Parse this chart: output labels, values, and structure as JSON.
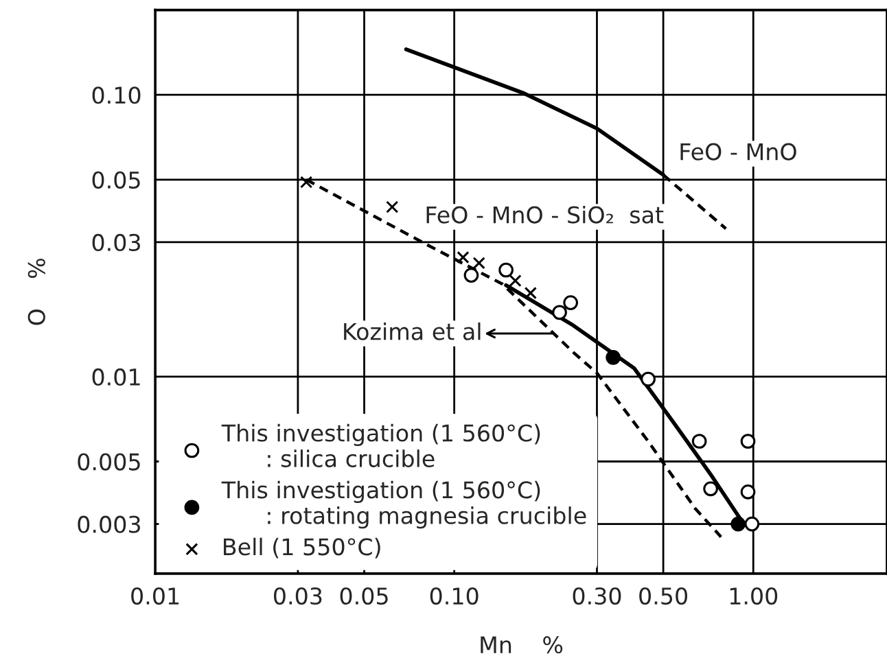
{
  "chart_data": {
    "type": "scatter",
    "xlabel": "Mn    %",
    "ylabel": "O    %",
    "log": "xy",
    "xlim": [
      0.01,
      2.8
    ],
    "ylim": [
      0.002,
      0.2
    ],
    "xticks": [
      {
        "value": 0.01,
        "label": "0.01"
      },
      {
        "value": 0.03,
        "label": "0.03"
      },
      {
        "value": 0.05,
        "label": "0.05"
      },
      {
        "value": 0.1,
        "label": "0.10"
      },
      {
        "value": 0.3,
        "label": "0.30"
      },
      {
        "value": 0.5,
        "label": "0.50"
      },
      {
        "value": 1.0,
        "label": "1.00"
      }
    ],
    "yticks": [
      {
        "value": 0.003,
        "label": "0.003"
      },
      {
        "value": 0.005,
        "label": "0.005"
      },
      {
        "value": 0.01,
        "label": "0.01"
      },
      {
        "value": 0.03,
        "label": "0.03"
      },
      {
        "value": 0.05,
        "label": "0.05"
      },
      {
        "value": 0.1,
        "label": "0.10"
      }
    ],
    "grid": true,
    "legend": "bottom left",
    "series": [
      {
        "name": "This investigation (1 560°C)\n      : silica crucible",
        "marker": "circle",
        "color": "#ffffff",
        "x": [
          0.114,
          0.149,
          0.225,
          0.245,
          0.445,
          0.66,
          0.72,
          0.96,
          0.96,
          0.99
        ],
        "values": [
          0.0229,
          0.0239,
          0.0169,
          0.0183,
          0.0098,
          0.0059,
          0.004,
          0.0059,
          0.0039,
          0.003
        ]
      },
      {
        "name": "This investigation (1 560°C)\n      : rotating magnesia crucible",
        "marker": "circle",
        "color": "#000000",
        "x": [
          0.34,
          0.89
        ],
        "values": [
          0.0117,
          0.003
        ]
      },
      {
        "name": "Bell (1 550°C)",
        "marker": "cross",
        "color": "#000000",
        "x": [
          0.032,
          0.062,
          0.107,
          0.121,
          0.16,
          0.18
        ],
        "values": [
          0.049,
          0.04,
          0.0265,
          0.0253,
          0.0219,
          0.0198
        ]
      },
      {
        "type": "line",
        "line_style": "solid",
        "marker": "none",
        "color": "#000000",
        "x": [
          0.069,
          0.172,
          0.3,
          0.5
        ],
        "values": [
          0.145,
          0.101,
          0.076,
          0.052
        ]
      },
      {
        "type": "line",
        "line_style": "dashed",
        "marker": "none",
        "color": "#000000",
        "x": [
          0.5,
          0.81
        ],
        "values": [
          0.052,
          0.0335
        ]
      },
      {
        "type": "line",
        "line_style": "dashed",
        "marker": "none",
        "color": "#000000",
        "x": [
          0.032,
          0.082,
          0.145,
          0.25,
          0.3,
          0.445,
          0.64,
          0.78
        ],
        "values": [
          0.05,
          0.0292,
          0.0213,
          0.0122,
          0.0103,
          0.0059,
          0.0034,
          0.0027
        ]
      },
      {
        "type": "line",
        "line_style": "solid",
        "marker": "none",
        "color": "#000000",
        "x": [
          0.149,
          0.25,
          0.4,
          0.54,
          0.72,
          0.91
        ],
        "values": [
          0.0211,
          0.0152,
          0.0107,
          0.0069,
          0.0045,
          0.0031
        ]
      }
    ],
    "annotations": [
      "FeO - MnO",
      "FeO - MnO - SiO₂  sat",
      "Kozima et al"
    ]
  }
}
